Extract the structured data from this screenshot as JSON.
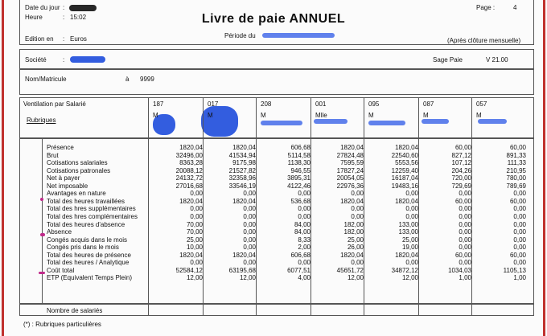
{
  "header": {
    "date_label": "Date du jour",
    "time_label": "Heure",
    "time_value": "15:02",
    "edition_label": "Edition en",
    "edition_value": "Euros",
    "title": "Livre de paie ANNUEL",
    "period_label": "Période   du",
    "page_label": "Page :",
    "page_value": "4",
    "closing_note": "(Après clôture mensuelle)"
  },
  "company": {
    "label": "Société",
    "software": "Sage Paie",
    "version": "V  21.00"
  },
  "employee": {
    "label": "Nom/Matricule",
    "range_word": "à",
    "range_value": "9999"
  },
  "table": {
    "ventilation_label": "Ventilation par  Salarié",
    "rubriques_label": "Rubriques",
    "columns": [
      {
        "code": "187",
        "sex": "M"
      },
      {
        "code": "017",
        "sex": "M"
      },
      {
        "code": "208",
        "sex": "M"
      },
      {
        "code": "001",
        "sex": "Mlle"
      },
      {
        "code": "095",
        "sex": "M"
      },
      {
        "code": "087",
        "sex": "M"
      },
      {
        "code": "057",
        "sex": "M"
      }
    ],
    "rows": [
      {
        "label": "Présence",
        "values": [
          "1820,04",
          "1820,04",
          "606,68",
          "1820,04",
          "1820,04",
          "60,00",
          "60,00"
        ]
      },
      {
        "label": "Brut",
        "values": [
          "32496,00",
          "41534,94",
          "5114,58",
          "27824,48",
          "22540,60",
          "827,12",
          "891,33"
        ]
      },
      {
        "label": "Cotisations salariales",
        "values": [
          "8363,28",
          "9175,98",
          "1138,30",
          "7595,59",
          "5553,56",
          "107,12",
          "111,33"
        ]
      },
      {
        "label": "Cotisations patronales",
        "values": [
          "20088,12",
          "21527,82",
          "946,55",
          "17827,24",
          "12259,40",
          "204,26",
          "210,95"
        ]
      },
      {
        "label": "Net à payer",
        "values": [
          "24132,72",
          "32358,96",
          "3895,31",
          "20054,05",
          "16187,04",
          "720,00",
          "780,00"
        ]
      },
      {
        "label": "Net imposable",
        "values": [
          "27016,68",
          "33546,19",
          "4122,46",
          "22976,36",
          "19483,16",
          "729,69",
          "789,69"
        ]
      },
      {
        "label": "Avantages en nature",
        "values": [
          "0,00",
          "0,00",
          "0,00",
          "0,00",
          "0,00",
          "0,00",
          "0,00"
        ]
      },
      {
        "label": "Total des heures travaillées",
        "values": [
          "1820,04",
          "1820,04",
          "536,68",
          "1820,04",
          "1820,04",
          "60,00",
          "60,00"
        ]
      },
      {
        "label": "Total des hres supplémentaires",
        "values": [
          "0,00",
          "0,00",
          "0,00",
          "0,00",
          "0,00",
          "0,00",
          "0,00"
        ]
      },
      {
        "label": "Total des hres complémentaires",
        "values": [
          "0,00",
          "0,00",
          "0,00",
          "0,00",
          "0,00",
          "0,00",
          "0,00"
        ]
      },
      {
        "label": "Total des heures d'absence",
        "values": [
          "70,00",
          "0,00",
          "84,00",
          "182,00",
          "133,00",
          "0,00",
          "0,00"
        ]
      },
      {
        "label": "Absence",
        "values": [
          "70,00",
          "0,00",
          "84,00",
          "182,00",
          "133,00",
          "0,00",
          "0,00"
        ]
      },
      {
        "label": "Congés acquis dans le mois",
        "values": [
          "25,00",
          "0,00",
          "8,33",
          "25,00",
          "25,00",
          "0,00",
          "0,00"
        ]
      },
      {
        "label": "Congés pris dans le mois",
        "values": [
          "10,00",
          "0,00",
          "2,00",
          "26,00",
          "19,00",
          "0,00",
          "0,00"
        ]
      },
      {
        "label": "Total des heures de présence",
        "values": [
          "1820,04",
          "1820,04",
          "606,68",
          "1820,04",
          "1820,04",
          "60,00",
          "60,00"
        ]
      },
      {
        "label": "Total des heures / Analytique",
        "values": [
          "0,00",
          "0,00",
          "0,00",
          "0,00",
          "0,00",
          "0,00",
          "0,00"
        ]
      },
      {
        "label": "Coût total",
        "values": [
          "52584,12",
          "63195,68",
          "6077,51",
          "45651,72",
          "34872,12",
          "1034,03",
          "1105,13"
        ]
      },
      {
        "label": "ETP (Equivalent Temps Plein)",
        "values": [
          "12,00",
          "12,00",
          "4,00",
          "12,00",
          "12,00",
          "1,00",
          "1,00"
        ]
      }
    ],
    "footer_label": "Nombre de salariés"
  },
  "footnote": "(*) : Rubriques particulières"
}
